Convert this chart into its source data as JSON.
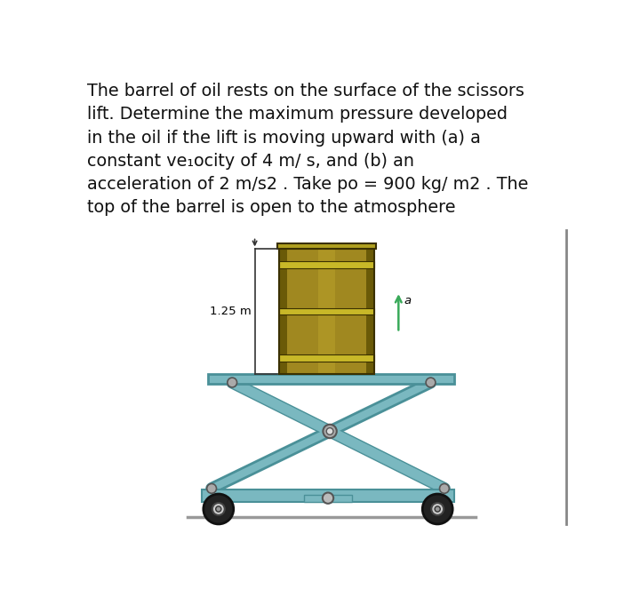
{
  "background_color": "#ffffff",
  "text_color": "#111111",
  "text_lines": [
    "The barrel of oil rests on the surface of the scissors",
    "lift. Determine the maximum pressure developed",
    "in the oil if the lift is moving upward with (a) a",
    "constant ve₁ocity of 4 m/ s, and (b) an",
    "acceleration of 2 m/s2 . Take po = 900 kg/ m2 . The",
    "top of the barrel is open to the atmosphere"
  ],
  "label_125m": "1.25 m",
  "label_a": "a",
  "barrel_body_color": "#a08820",
  "barrel_dark_color": "#6a5a08",
  "barrel_mid_color": "#b89818",
  "barrel_light_color": "#c8b030",
  "barrel_band_color": "#c8b828",
  "barrel_top_color": "#b0a020",
  "platform_color": "#7ab8c0",
  "platform_edge_color": "#4a9098",
  "leg_color": "#7ab8c0",
  "leg_edge_color": "#4a9098",
  "base_color": "#7ab8c0",
  "base_edge_color": "#4a9098",
  "wheel_outer_color": "#222222",
  "wheel_inner_color": "#888888",
  "pivot_color": "#aaaaaa",
  "pivot_edge_color": "#555555",
  "arrow_color": "#3aaa5a",
  "dim_color": "#333333",
  "ground_color": "#999999",
  "right_bar_color": "#888888"
}
